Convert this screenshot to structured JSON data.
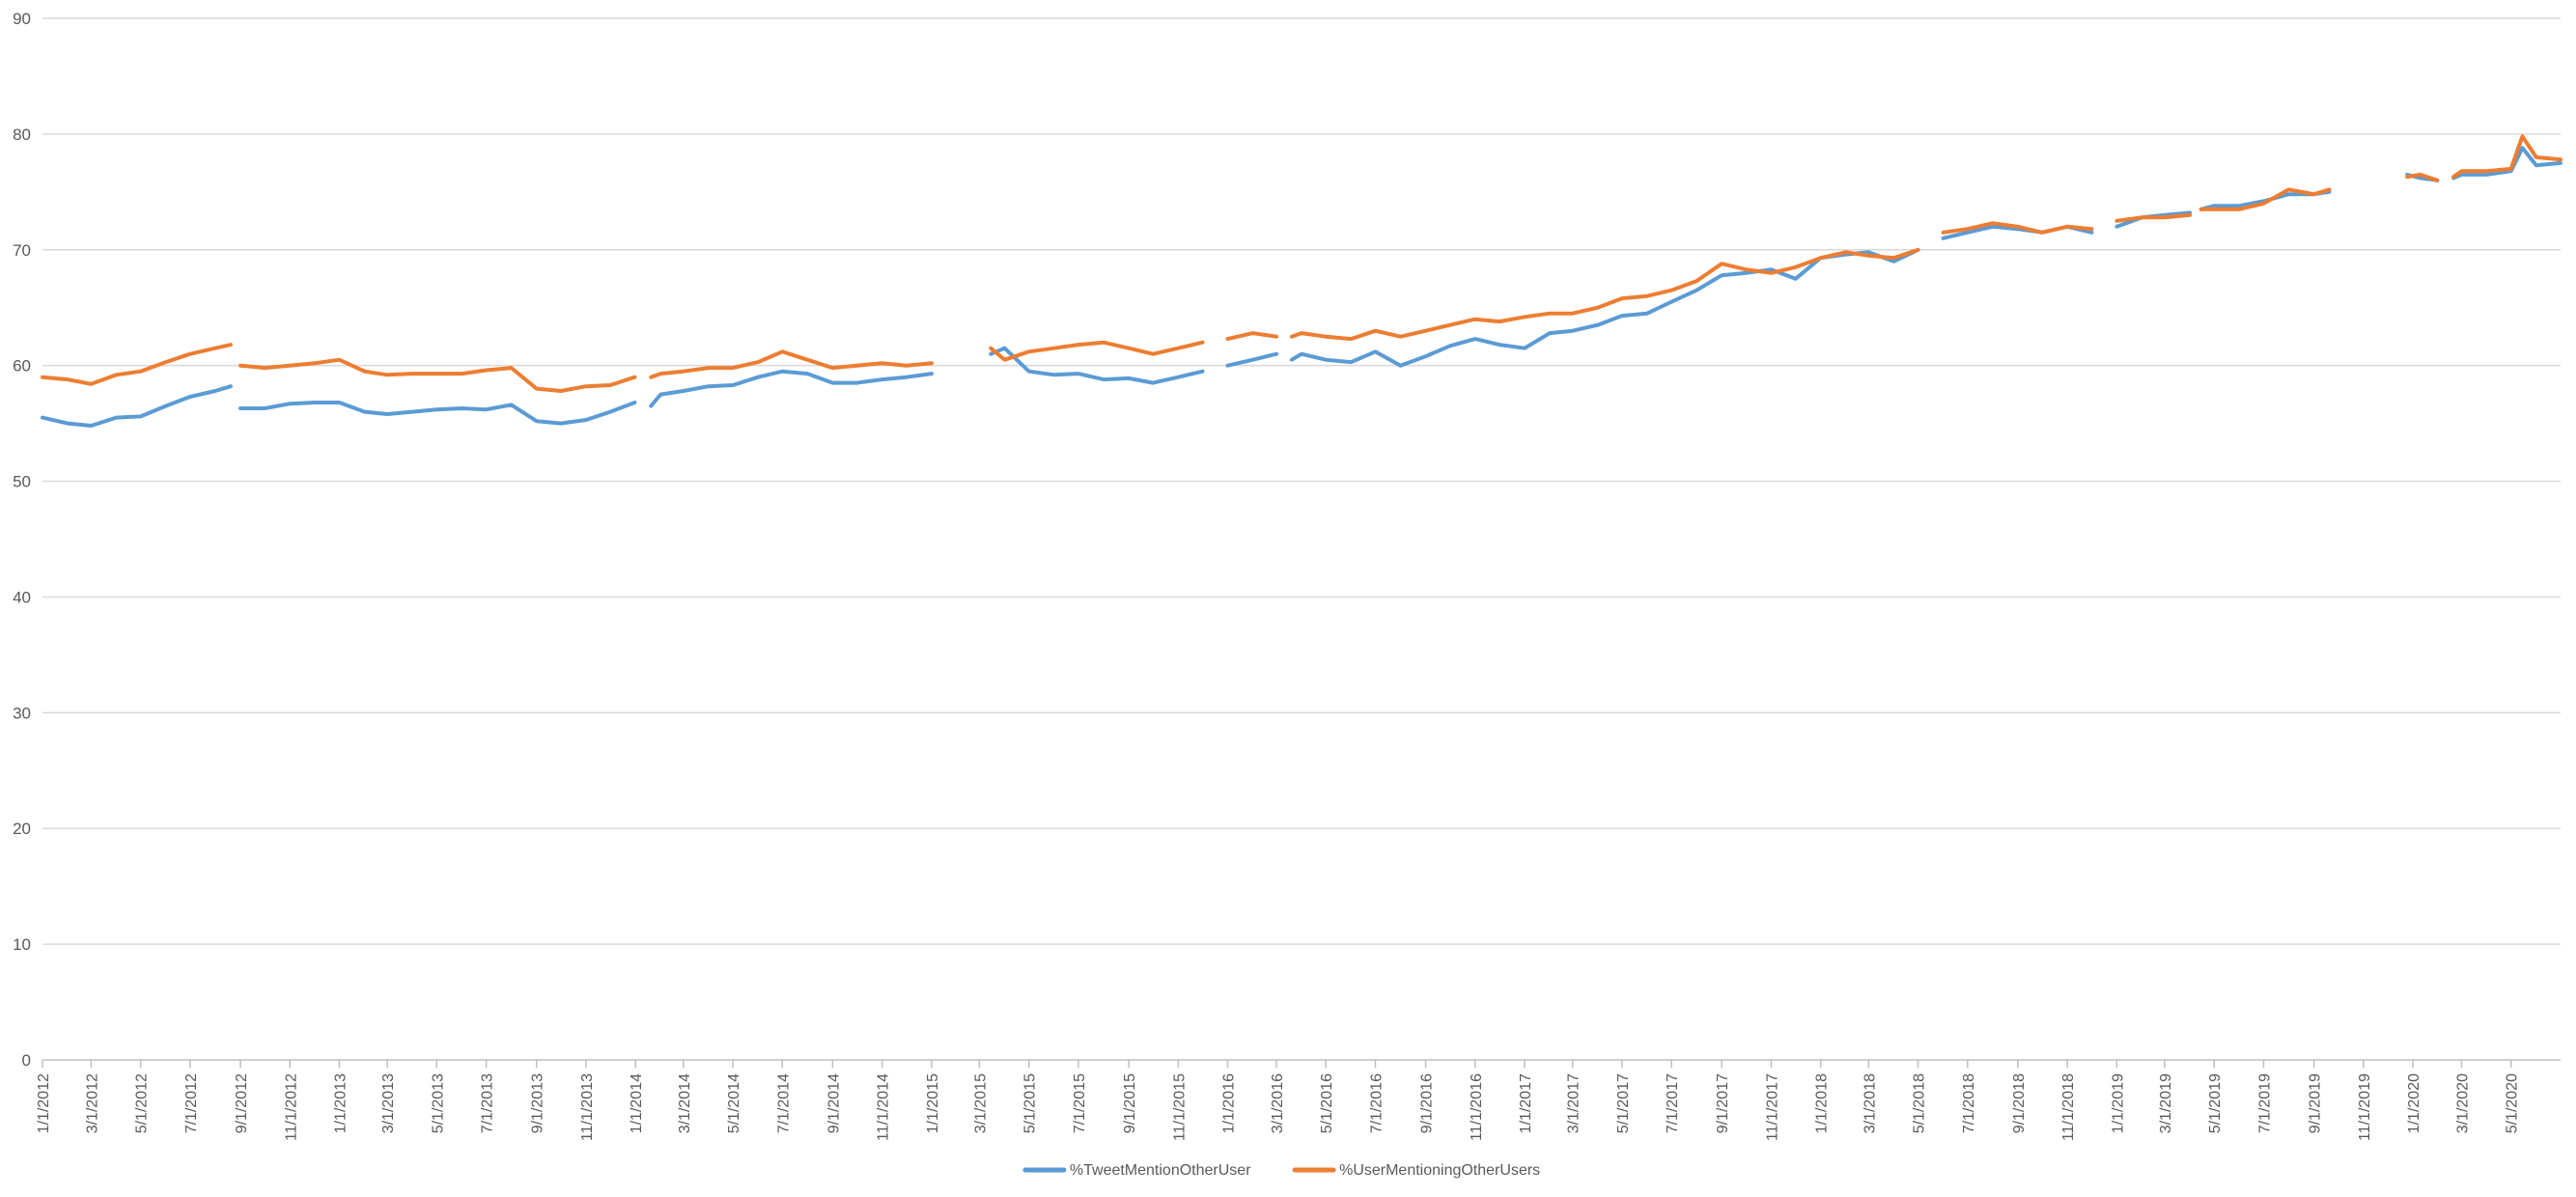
{
  "chart_data": {
    "type": "line",
    "title": "",
    "xlabel": "",
    "ylabel": "",
    "ylim": [
      0,
      90
    ],
    "yticks": [
      0,
      10,
      20,
      30,
      40,
      50,
      60,
      70,
      80,
      90
    ],
    "xlim": [
      "2012-01-01",
      "2020-07-01"
    ],
    "x_tick_labels": [
      "1/1/2012",
      "3/1/2012",
      "5/1/2012",
      "7/1/2012",
      "9/1/2012",
      "11/1/2012",
      "1/1/2013",
      "3/1/2013",
      "5/1/2013",
      "7/1/2013",
      "9/1/2013",
      "11/1/2013",
      "1/1/2014",
      "3/1/2014",
      "5/1/2014",
      "7/1/2014",
      "9/1/2014",
      "11/1/2014",
      "1/1/2015",
      "3/1/2015",
      "5/1/2015",
      "7/1/2015",
      "9/1/2015",
      "11/1/2015",
      "1/1/2016",
      "3/1/2016",
      "5/1/2016",
      "7/1/2016",
      "9/1/2016",
      "11/1/2016",
      "1/1/2017",
      "3/1/2017",
      "5/1/2017",
      "7/1/2017",
      "9/1/2017",
      "11/1/2017",
      "1/1/2018",
      "3/1/2018",
      "5/1/2018",
      "7/1/2018",
      "9/1/2018",
      "11/1/2018",
      "1/1/2019",
      "3/1/2019",
      "5/1/2019",
      "7/1/2019",
      "9/1/2019",
      "11/1/2019",
      "1/1/2020",
      "3/1/2020",
      "5/1/2020"
    ],
    "grid": true,
    "legend_position": "bottom-center",
    "series": [
      {
        "name": "%TweetMentionOtherUser",
        "color": "#5b9bd5",
        "points": [
          [
            "2012-01-01",
            55.5
          ],
          [
            "2012-02-01",
            55.0
          ],
          [
            "2012-03-01",
            54.8
          ],
          [
            "2012-04-01",
            55.5
          ],
          [
            "2012-05-01",
            55.6
          ],
          [
            "2012-06-01",
            56.5
          ],
          [
            "2012-07-01",
            57.3
          ],
          [
            "2012-08-01",
            57.8
          ],
          [
            "2012-08-20",
            58.2
          ],
          null,
          [
            "2012-09-01",
            56.3
          ],
          [
            "2012-10-01",
            56.3
          ],
          [
            "2012-11-01",
            56.7
          ],
          [
            "2012-12-01",
            56.8
          ],
          [
            "2013-01-01",
            56.8
          ],
          [
            "2013-02-01",
            56.0
          ],
          [
            "2013-03-01",
            55.8
          ],
          [
            "2013-04-01",
            56.0
          ],
          [
            "2013-05-01",
            56.2
          ],
          [
            "2013-06-01",
            56.3
          ],
          [
            "2013-07-01",
            56.2
          ],
          [
            "2013-08-01",
            56.6
          ],
          [
            "2013-09-01",
            55.2
          ],
          [
            "2013-10-01",
            55.0
          ],
          [
            "2013-11-01",
            55.3
          ],
          [
            "2013-12-01",
            56.0
          ],
          [
            "2013-12-31",
            56.8
          ],
          null,
          [
            "2014-01-20",
            56.5
          ],
          [
            "2014-02-01",
            57.5
          ],
          [
            "2014-03-01",
            57.8
          ],
          [
            "2014-04-01",
            58.2
          ],
          [
            "2014-05-01",
            58.3
          ],
          [
            "2014-06-01",
            59.0
          ],
          [
            "2014-07-01",
            59.5
          ],
          [
            "2014-08-01",
            59.3
          ],
          [
            "2014-09-01",
            58.5
          ],
          [
            "2014-10-01",
            58.5
          ],
          [
            "2014-11-01",
            58.8
          ],
          [
            "2014-12-01",
            59.0
          ],
          [
            "2015-01-01",
            59.3
          ],
          null,
          [
            "2015-03-15",
            61.0
          ],
          [
            "2015-04-01",
            61.5
          ],
          [
            "2015-05-01",
            59.5
          ],
          [
            "2015-06-01",
            59.2
          ],
          [
            "2015-07-01",
            59.3
          ],
          [
            "2015-08-01",
            58.8
          ],
          [
            "2015-09-01",
            58.9
          ],
          [
            "2015-10-01",
            58.5
          ],
          [
            "2015-11-01",
            59.0
          ],
          [
            "2015-12-01",
            59.5
          ],
          null,
          [
            "2016-01-01",
            60.0
          ],
          [
            "2016-02-01",
            60.5
          ],
          [
            "2016-03-01",
            61.0
          ],
          null,
          [
            "2016-03-20",
            60.5
          ],
          [
            "2016-04-01",
            61.0
          ],
          [
            "2016-05-01",
            60.5
          ],
          [
            "2016-06-01",
            60.3
          ],
          [
            "2016-07-01",
            61.2
          ],
          [
            "2016-08-01",
            60.0
          ],
          [
            "2016-09-01",
            60.8
          ],
          [
            "2016-10-01",
            61.7
          ],
          [
            "2016-11-01",
            62.3
          ],
          [
            "2016-12-01",
            61.8
          ],
          [
            "2017-01-01",
            61.5
          ],
          [
            "2017-02-01",
            62.8
          ],
          [
            "2017-03-01",
            63.0
          ],
          [
            "2017-04-01",
            63.5
          ],
          [
            "2017-05-01",
            64.3
          ],
          [
            "2017-06-01",
            64.5
          ],
          [
            "2017-07-01",
            65.5
          ],
          [
            "2017-08-01",
            66.5
          ],
          [
            "2017-09-01",
            67.8
          ],
          [
            "2017-10-01",
            68.0
          ],
          [
            "2017-11-01",
            68.3
          ],
          [
            "2017-12-01",
            67.5
          ],
          [
            "2018-01-01",
            69.3
          ],
          [
            "2018-02-01",
            69.6
          ],
          [
            "2018-03-01",
            69.8
          ],
          [
            "2018-04-01",
            69.0
          ],
          [
            "2018-05-01",
            70.0
          ],
          null,
          [
            "2018-06-01",
            71.0
          ],
          [
            "2018-07-01",
            71.5
          ],
          [
            "2018-08-01",
            72.0
          ],
          [
            "2018-09-01",
            71.8
          ],
          [
            "2018-10-01",
            71.5
          ],
          [
            "2018-11-01",
            72.0
          ],
          [
            "2018-12-01",
            71.5
          ],
          null,
          [
            "2019-01-01",
            72.0
          ],
          [
            "2019-02-01",
            72.8
          ],
          [
            "2019-03-01",
            73.0
          ],
          [
            "2019-04-01",
            73.2
          ],
          null,
          [
            "2019-04-15",
            73.5
          ],
          [
            "2019-05-01",
            73.8
          ],
          [
            "2019-06-01",
            73.8
          ],
          [
            "2019-07-01",
            74.2
          ],
          [
            "2019-08-01",
            74.8
          ],
          [
            "2019-09-01",
            74.8
          ],
          [
            "2019-09-20",
            75.0
          ],
          null,
          [
            "2019-12-25",
            76.5
          ],
          [
            "2020-01-10",
            76.2
          ],
          [
            "2020-01-31",
            76.0
          ],
          null,
          [
            "2020-02-20",
            76.2
          ],
          [
            "2020-03-01",
            76.5
          ],
          [
            "2020-04-01",
            76.5
          ],
          [
            "2020-05-01",
            76.8
          ],
          [
            "2020-05-15",
            78.8
          ],
          [
            "2020-06-01",
            77.3
          ],
          [
            "2020-07-01",
            77.5
          ]
        ]
      },
      {
        "name": "%UserMentioningOtherUsers",
        "color": "#ed7d31",
        "points": [
          [
            "2012-01-01",
            59.0
          ],
          [
            "2012-02-01",
            58.8
          ],
          [
            "2012-03-01",
            58.4
          ],
          [
            "2012-04-01",
            59.2
          ],
          [
            "2012-05-01",
            59.5
          ],
          [
            "2012-06-01",
            60.3
          ],
          [
            "2012-07-01",
            61.0
          ],
          [
            "2012-08-01",
            61.5
          ],
          [
            "2012-08-20",
            61.8
          ],
          null,
          [
            "2012-09-01",
            60.0
          ],
          [
            "2012-10-01",
            59.8
          ],
          [
            "2012-11-01",
            60.0
          ],
          [
            "2012-12-01",
            60.2
          ],
          [
            "2013-01-01",
            60.5
          ],
          [
            "2013-02-01",
            59.5
          ],
          [
            "2013-03-01",
            59.2
          ],
          [
            "2013-04-01",
            59.3
          ],
          [
            "2013-05-01",
            59.3
          ],
          [
            "2013-06-01",
            59.3
          ],
          [
            "2013-07-01",
            59.6
          ],
          [
            "2013-08-01",
            59.8
          ],
          [
            "2013-09-01",
            58.0
          ],
          [
            "2013-10-01",
            57.8
          ],
          [
            "2013-11-01",
            58.2
          ],
          [
            "2013-12-01",
            58.3
          ],
          [
            "2013-12-31",
            59.0
          ],
          null,
          [
            "2014-01-20",
            59.0
          ],
          [
            "2014-02-01",
            59.3
          ],
          [
            "2014-03-01",
            59.5
          ],
          [
            "2014-04-01",
            59.8
          ],
          [
            "2014-05-01",
            59.8
          ],
          [
            "2014-06-01",
            60.3
          ],
          [
            "2014-07-01",
            61.2
          ],
          [
            "2014-08-01",
            60.5
          ],
          [
            "2014-09-01",
            59.8
          ],
          [
            "2014-10-01",
            60.0
          ],
          [
            "2014-11-01",
            60.2
          ],
          [
            "2014-12-01",
            60.0
          ],
          [
            "2015-01-01",
            60.2
          ],
          null,
          [
            "2015-03-15",
            61.5
          ],
          [
            "2015-04-01",
            60.5
          ],
          [
            "2015-05-01",
            61.2
          ],
          [
            "2015-06-01",
            61.5
          ],
          [
            "2015-07-01",
            61.8
          ],
          [
            "2015-08-01",
            62.0
          ],
          [
            "2015-09-01",
            61.5
          ],
          [
            "2015-10-01",
            61.0
          ],
          [
            "2015-11-01",
            61.5
          ],
          [
            "2015-12-01",
            62.0
          ],
          null,
          [
            "2016-01-01",
            62.3
          ],
          [
            "2016-02-01",
            62.8
          ],
          [
            "2016-03-01",
            62.5
          ],
          null,
          [
            "2016-03-20",
            62.5
          ],
          [
            "2016-04-01",
            62.8
          ],
          [
            "2016-05-01",
            62.5
          ],
          [
            "2016-06-01",
            62.3
          ],
          [
            "2016-07-01",
            63.0
          ],
          [
            "2016-08-01",
            62.5
          ],
          [
            "2016-09-01",
            63.0
          ],
          [
            "2016-10-01",
            63.5
          ],
          [
            "2016-11-01",
            64.0
          ],
          [
            "2016-12-01",
            63.8
          ],
          [
            "2017-01-01",
            64.2
          ],
          [
            "2017-02-01",
            64.5
          ],
          [
            "2017-03-01",
            64.5
          ],
          [
            "2017-04-01",
            65.0
          ],
          [
            "2017-05-01",
            65.8
          ],
          [
            "2017-06-01",
            66.0
          ],
          [
            "2017-07-01",
            66.5
          ],
          [
            "2017-08-01",
            67.3
          ],
          [
            "2017-09-01",
            68.8
          ],
          [
            "2017-10-01",
            68.3
          ],
          [
            "2017-11-01",
            68.0
          ],
          [
            "2017-12-01",
            68.5
          ],
          [
            "2018-01-01",
            69.3
          ],
          [
            "2018-02-01",
            69.8
          ],
          [
            "2018-03-01",
            69.5
          ],
          [
            "2018-04-01",
            69.3
          ],
          [
            "2018-05-01",
            70.0
          ],
          null,
          [
            "2018-06-01",
            71.5
          ],
          [
            "2018-07-01",
            71.8
          ],
          [
            "2018-08-01",
            72.3
          ],
          [
            "2018-09-01",
            72.0
          ],
          [
            "2018-10-01",
            71.5
          ],
          [
            "2018-11-01",
            72.0
          ],
          [
            "2018-12-01",
            71.8
          ],
          null,
          [
            "2019-01-01",
            72.5
          ],
          [
            "2019-02-01",
            72.8
          ],
          [
            "2019-03-01",
            72.8
          ],
          [
            "2019-04-01",
            73.0
          ],
          null,
          [
            "2019-04-15",
            73.5
          ],
          [
            "2019-05-01",
            73.5
          ],
          [
            "2019-06-01",
            73.5
          ],
          [
            "2019-07-01",
            74.0
          ],
          [
            "2019-08-01",
            75.2
          ],
          [
            "2019-09-01",
            74.8
          ],
          [
            "2019-09-20",
            75.2
          ],
          null,
          [
            "2019-12-25",
            76.3
          ],
          [
            "2020-01-10",
            76.5
          ],
          [
            "2020-01-31",
            76.0
          ],
          null,
          [
            "2020-02-20",
            76.3
          ],
          [
            "2020-03-01",
            76.8
          ],
          [
            "2020-04-01",
            76.8
          ],
          [
            "2020-05-01",
            77.0
          ],
          [
            "2020-05-15",
            79.8
          ],
          [
            "2020-06-01",
            78.0
          ],
          [
            "2020-07-01",
            77.8
          ]
        ]
      }
    ]
  }
}
